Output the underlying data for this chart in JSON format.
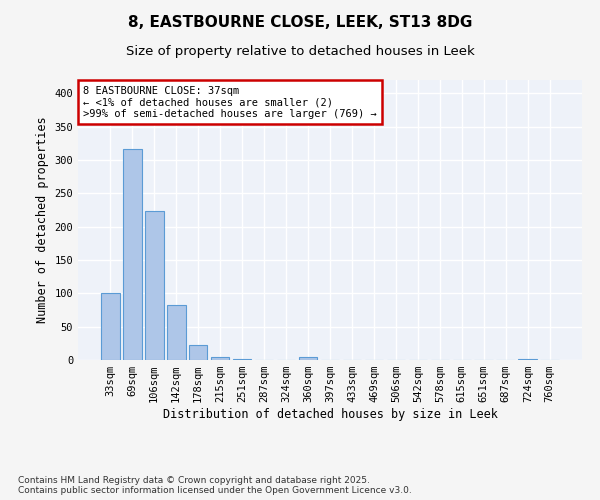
{
  "title_line1": "8, EASTBOURNE CLOSE, LEEK, ST13 8DG",
  "title_line2": "Size of property relative to detached houses in Leek",
  "xlabel": "Distribution of detached houses by size in Leek",
  "ylabel": "Number of detached properties",
  "categories": [
    "33sqm",
    "69sqm",
    "106sqm",
    "142sqm",
    "178sqm",
    "215sqm",
    "251sqm",
    "287sqm",
    "324sqm",
    "360sqm",
    "397sqm",
    "433sqm",
    "469sqm",
    "506sqm",
    "542sqm",
    "578sqm",
    "615sqm",
    "651sqm",
    "687sqm",
    "724sqm",
    "760sqm"
  ],
  "values": [
    101,
    316,
    224,
    82,
    22,
    5,
    2,
    0,
    0,
    4,
    0,
    0,
    0,
    0,
    0,
    0,
    0,
    0,
    0,
    2,
    0
  ],
  "bar_color": "#aec6e8",
  "bar_edge_color": "#5b9bd5",
  "annotation_box_color": "#cc0000",
  "annotation_text": "8 EASTBOURNE CLOSE: 37sqm\n← <1% of detached houses are smaller (2)\n>99% of semi-detached houses are larger (769) →",
  "ylim": [
    0,
    420
  ],
  "yticks": [
    0,
    50,
    100,
    150,
    200,
    250,
    300,
    350,
    400
  ],
  "background_color": "#eef2f9",
  "grid_color": "#ffffff",
  "fig_facecolor": "#f5f5f5",
  "title_fontsize": 11,
  "subtitle_fontsize": 9.5,
  "axis_label_fontsize": 8.5,
  "tick_fontsize": 7.5,
  "annotation_fontsize": 7.5,
  "footer_fontsize": 6.5,
  "footer_text": "Contains HM Land Registry data © Crown copyright and database right 2025.\nContains public sector information licensed under the Open Government Licence v3.0."
}
